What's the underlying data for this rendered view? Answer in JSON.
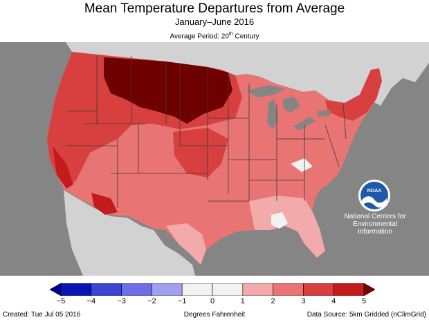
{
  "header": {
    "title": "Mean Temperature Departures from Average",
    "subtitle": "January–June 2016",
    "period_prefix": "Average Period: 20",
    "period_sup": "th",
    "period_suffix": " Century"
  },
  "organization": {
    "logo_text": "NOAA",
    "line1": "National Centers for",
    "line2": "Environmental",
    "line3": "Information"
  },
  "legend": {
    "ticks": [
      "−5",
      "−4",
      "−3",
      "−2",
      "−1",
      "0",
      "1",
      "2",
      "3",
      "4",
      "5"
    ],
    "colors": [
      "#0a14b4",
      "#3c46d2",
      "#6e6ee6",
      "#a0a0f0",
      "#f2f2f2",
      "#f2f2f2",
      "#f2aaaa",
      "#e87474",
      "#d84040",
      "#c41c1c"
    ],
    "low_arrow_color": "#00008c",
    "high_arrow_color": "#7a0000",
    "units_label": "Degrees Fahrenheit"
  },
  "map_colors": {
    "ocean": "#858585",
    "land_outside": "#d2d2d2",
    "lakes": "#858585",
    "anomaly_5_plus": "#6e0000",
    "anomaly_4_5": "#c41c1c",
    "anomaly_3_4": "#d84040",
    "anomaly_2_3": "#e87474",
    "anomaly_1_2": "#f2aaaa",
    "anomaly_near": "#f2f2f2",
    "borders": "#3a3a3a"
  },
  "footer": {
    "created": "Created: Tue Jul 05 2016",
    "source": "Data Source: 5km Gridded (nClimGrid)"
  }
}
